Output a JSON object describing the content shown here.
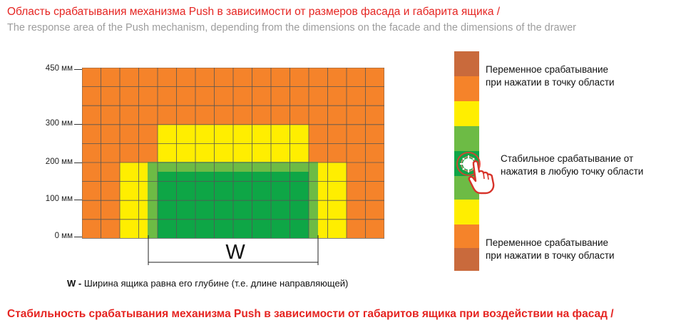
{
  "title": "Область срабатывания механизма Push в зависимости от размеров фасада и габарита ящика /",
  "subtitle": "The response area of the Push mechanism, depending from the dimensions on the facade and the dimensions of the drawer",
  "y_axis": {
    "labels": [
      "450 мм",
      "300 мм",
      "200 мм",
      "100 мм",
      "0 мм"
    ]
  },
  "colors": {
    "orange": "#f5832a",
    "yellow": "#ffee00",
    "light_green": "#6dbb45",
    "dark_green": "#0ea646",
    "dark_orange": "#c96a3c",
    "grid_line": "#555555"
  },
  "width_marker": {
    "letter": "W"
  },
  "note": {
    "bold": "W -",
    "text": " Ширина ящика равна его глубине (т.е. длине направляющей)"
  },
  "legend": {
    "top_text_line1": "Переменное срабатывание",
    "top_text_line2": "при нажатии в точку области",
    "middle_text_line1": "Стабильное срабатывание от",
    "middle_text_line2": "нажатия в любую точку области",
    "bottom_text_line1": "Переменное срабатывание",
    "bottom_text_line2": "при нажатии в точку области",
    "icon": "pressing-hand-icon"
  },
  "bottom_title": "Стабильность срабатывания механизма Push в зависимости от габаритов ящика при воздействии на фасад /"
}
